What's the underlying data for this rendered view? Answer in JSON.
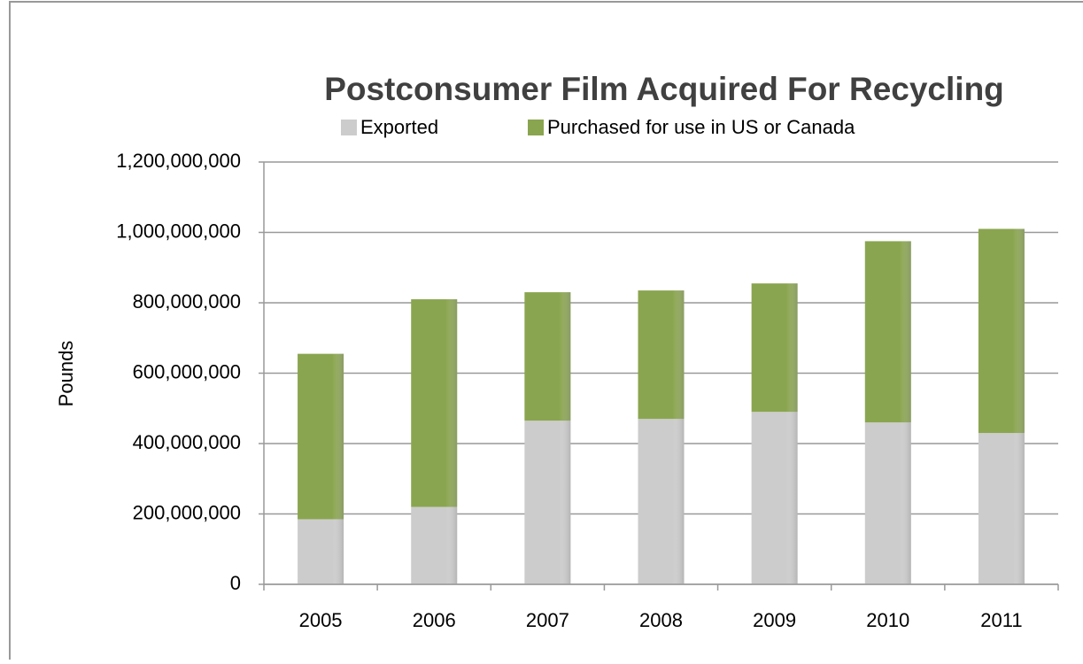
{
  "chart_data": {
    "type": "stacked_bar",
    "title": "Postconsumer Film Acquired For Recycling",
    "y_label": "Pounds",
    "categories": [
      "2005",
      "2006",
      "2007",
      "2008",
      "2009",
      "2010",
      "2011"
    ],
    "series": [
      {
        "name": "Exported",
        "color": "#cccccc",
        "values": [
          185000000,
          220000000,
          465000000,
          470000000,
          490000000,
          460000000,
          430000000
        ]
      },
      {
        "name": "Purchased for use in US or Canada",
        "color": "#8aa54f",
        "values": [
          470000000,
          590000000,
          365000000,
          365000000,
          365000000,
          515000000,
          580000000
        ]
      }
    ],
    "ylim": [
      0,
      1200000000
    ],
    "yticks": [
      0,
      {
        "value": 200000000,
        "label": "200,000,000"
      },
      {
        "value": 400000000,
        "label": "400,000,000"
      },
      {
        "value": 600000000,
        "label": "600,000,000"
      },
      {
        "value": 800000000,
        "label": "800,000,000"
      },
      {
        "value": 1000000000,
        "label": "1,000,000,000"
      },
      {
        "value": 1200000000,
        "label": "1,200,000,000"
      }
    ],
    "grid": true,
    "legend": "top"
  }
}
